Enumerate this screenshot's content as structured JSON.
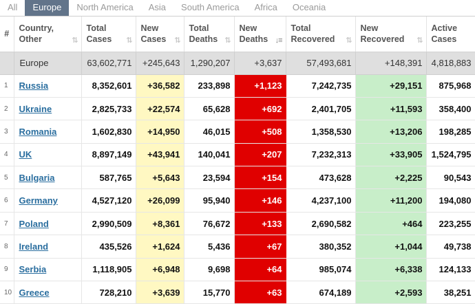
{
  "tabs": [
    {
      "label": "All",
      "active": false
    },
    {
      "label": "Europe",
      "active": true
    },
    {
      "label": "North America",
      "active": false
    },
    {
      "label": "Asia",
      "active": false
    },
    {
      "label": "South America",
      "active": false
    },
    {
      "label": "Africa",
      "active": false
    },
    {
      "label": "Oceania",
      "active": false
    }
  ],
  "columns": [
    {
      "line1": "#",
      "line2": ""
    },
    {
      "line1": "Country,",
      "line2": "Other"
    },
    {
      "line1": "Total",
      "line2": "Cases"
    },
    {
      "line1": "New",
      "line2": "Cases"
    },
    {
      "line1": "Total",
      "line2": "Deaths"
    },
    {
      "line1": "New",
      "line2": "Deaths"
    },
    {
      "line1": "Total",
      "line2": "Recovered"
    },
    {
      "line1": "New",
      "line2": "Recovered"
    },
    {
      "line1": "Active",
      "line2": "Cases"
    }
  ],
  "sort_icon": "sort-arrows-icon",
  "total_row": {
    "name": "Europe",
    "total_cases": "63,602,771",
    "new_cases": "+245,643",
    "total_deaths": "1,290,207",
    "new_deaths": "+3,637",
    "total_recovered": "57,493,681",
    "new_recovered": "+148,391",
    "active_cases": "4,818,883"
  },
  "rows": [
    {
      "idx": "1",
      "name": "Russia",
      "total_cases": "8,352,601",
      "new_cases": "+36,582",
      "total_deaths": "233,898",
      "new_deaths": "+1,123",
      "total_recovered": "7,242,735",
      "new_recovered": "+29,151",
      "active_cases": "875,968"
    },
    {
      "idx": "2",
      "name": "Ukraine",
      "total_cases": "2,825,733",
      "new_cases": "+22,574",
      "total_deaths": "65,628",
      "new_deaths": "+692",
      "total_recovered": "2,401,705",
      "new_recovered": "+11,593",
      "active_cases": "358,400"
    },
    {
      "idx": "3",
      "name": "Romania",
      "total_cases": "1,602,830",
      "new_cases": "+14,950",
      "total_deaths": "46,015",
      "new_deaths": "+508",
      "total_recovered": "1,358,530",
      "new_recovered": "+13,206",
      "active_cases": "198,285"
    },
    {
      "idx": "4",
      "name": "UK",
      "total_cases": "8,897,149",
      "new_cases": "+43,941",
      "total_deaths": "140,041",
      "new_deaths": "+207",
      "total_recovered": "7,232,313",
      "new_recovered": "+33,905",
      "active_cases": "1,524,795"
    },
    {
      "idx": "5",
      "name": "Bulgaria",
      "total_cases": "587,765",
      "new_cases": "+5,643",
      "total_deaths": "23,594",
      "new_deaths": "+154",
      "total_recovered": "473,628",
      "new_recovered": "+2,225",
      "active_cases": "90,543"
    },
    {
      "idx": "6",
      "name": "Germany",
      "total_cases": "4,527,120",
      "new_cases": "+26,099",
      "total_deaths": "95,940",
      "new_deaths": "+146",
      "total_recovered": "4,237,100",
      "new_recovered": "+11,200",
      "active_cases": "194,080"
    },
    {
      "idx": "7",
      "name": "Poland",
      "total_cases": "2,990,509",
      "new_cases": "+8,361",
      "total_deaths": "76,672",
      "new_deaths": "+133",
      "total_recovered": "2,690,582",
      "new_recovered": "+464",
      "active_cases": "223,255"
    },
    {
      "idx": "8",
      "name": "Ireland",
      "total_cases": "435,526",
      "new_cases": "+1,624",
      "total_deaths": "5,436",
      "new_deaths": "+67",
      "total_recovered": "380,352",
      "new_recovered": "+1,044",
      "active_cases": "49,738"
    },
    {
      "idx": "9",
      "name": "Serbia",
      "total_cases": "1,118,905",
      "new_cases": "+6,948",
      "total_deaths": "9,698",
      "new_deaths": "+64",
      "total_recovered": "985,074",
      "new_recovered": "+6,338",
      "active_cases": "124,133"
    },
    {
      "idx": "10",
      "name": "Greece",
      "total_cases": "728,210",
      "new_cases": "+3,639",
      "total_deaths": "15,770",
      "new_deaths": "+63",
      "total_recovered": "674,189",
      "new_recovered": "+2,593",
      "active_cases": "38,251"
    }
  ],
  "colors": {
    "active_tab": "#62748a",
    "new_cases_bg": "#fff8c2",
    "new_deaths_bg": "#e00000",
    "new_recovered_bg": "#c8eec9",
    "link": "#2a6e9f"
  }
}
